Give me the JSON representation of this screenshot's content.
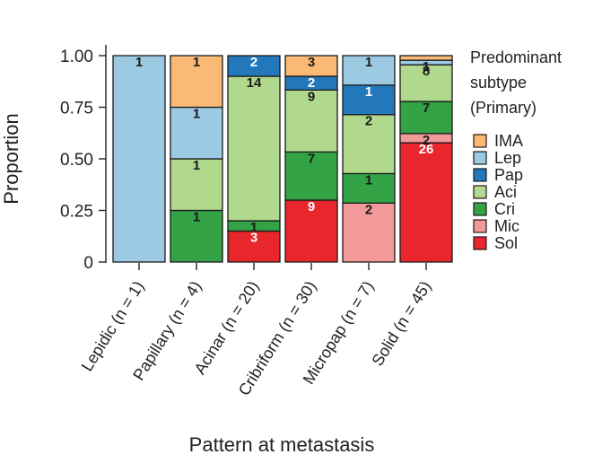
{
  "chart_data": {
    "type": "bar",
    "stacked": true,
    "normalized": true,
    "xlabel": "Pattern at metastasis",
    "ylabel": "Proportion",
    "ylim": [
      0,
      1
    ],
    "yticks": [
      {
        "value": 0,
        "label": "0"
      },
      {
        "value": 0.25,
        "label": "0.25"
      },
      {
        "value": 0.5,
        "label": "0.50"
      },
      {
        "value": 0.75,
        "label": "0.75"
      },
      {
        "value": 1.0,
        "label": "1.00"
      }
    ],
    "legend_title": [
      "Predominant",
      "subtype",
      "(Primary)"
    ],
    "legend_position": "right",
    "series": [
      {
        "key": "Sol",
        "name": "Sol",
        "color": "#e8262b"
      },
      {
        "key": "Mic",
        "name": "Mic",
        "color": "#f4999a"
      },
      {
        "key": "Cri",
        "name": "Cri",
        "color": "#33a345"
      },
      {
        "key": "Aci",
        "name": "Aci",
        "color": "#b0d98e"
      },
      {
        "key": "Pap",
        "name": "Pap",
        "color": "#2378bb"
      },
      {
        "key": "Lep",
        "name": "Lep",
        "color": "#9dcae3"
      },
      {
        "key": "IMA",
        "name": "IMA",
        "color": "#fbb976"
      }
    ],
    "legend_order": [
      "IMA",
      "Lep",
      "Pap",
      "Aci",
      "Cri",
      "Mic",
      "Sol"
    ],
    "categories": [
      {
        "label": "Lepidic (n = 1)",
        "counts": {
          "Sol": 0,
          "Mic": 0,
          "Cri": 0,
          "Aci": 0,
          "Pap": 0,
          "Lep": 1,
          "IMA": 0
        },
        "labels": {
          "Lep": "1"
        }
      },
      {
        "label": "Papillary (n = 4)",
        "counts": {
          "Sol": 0,
          "Mic": 0,
          "Cri": 1,
          "Aci": 1,
          "Pap": 0,
          "Lep": 1,
          "IMA": 1
        },
        "labels": {
          "Cri": "1",
          "Aci": "1",
          "Lep": "1",
          "IMA": "1"
        }
      },
      {
        "label": "Acinar (n = 20)",
        "counts": {
          "Sol": 3,
          "Mic": 0,
          "Cri": 1,
          "Aci": 14,
          "Pap": 2,
          "Lep": 0,
          "IMA": 0
        },
        "labels": {
          "Sol": "3",
          "Cri": "1",
          "Aci": "14",
          "Pap": "2"
        }
      },
      {
        "label": "Cribriform (n = 30)",
        "counts": {
          "Sol": 9,
          "Mic": 0,
          "Cri": 7,
          "Aci": 9,
          "Pap": 2,
          "Lep": 0,
          "IMA": 3
        },
        "labels": {
          "Sol": "9",
          "Cri": "7",
          "Aci": "9",
          "Pap": "2",
          "IMA": "3"
        }
      },
      {
        "label": "Micropap (n = 7)",
        "counts": {
          "Sol": 0,
          "Mic": 2,
          "Cri": 1,
          "Aci": 2,
          "Pap": 1,
          "Lep": 1,
          "IMA": 0
        },
        "labels": {
          "Mic": "2",
          "Cri": "1",
          "Aci": "2",
          "Pap": "1",
          "Lep": "1"
        }
      },
      {
        "label": "Solid (n = 45)",
        "counts": {
          "Sol": 26,
          "Mic": 2,
          "Cri": 7,
          "Aci": 8,
          "Pap": 0,
          "Lep": 1,
          "IMA": 1
        },
        "labels": {
          "Sol": "26",
          "Mic": "2",
          "Cri": "7",
          "Aci": "8",
          "Lep": "1"
        }
      }
    ]
  }
}
